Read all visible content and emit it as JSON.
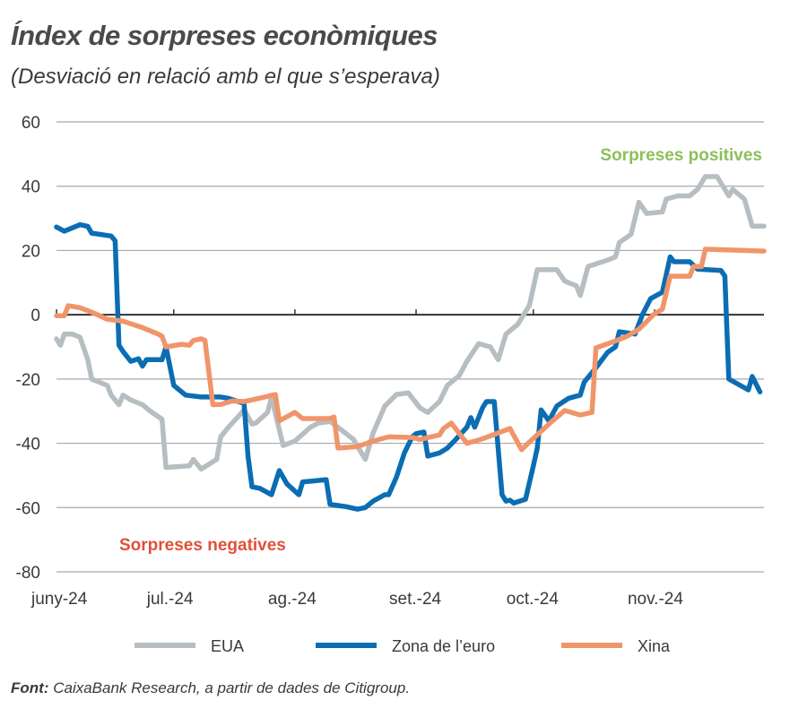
{
  "chart_data": {
    "type": "line",
    "title": "Índex de sorpreses econòmiques",
    "subtitle": "(Desviació en relació amb el que s’esperava)",
    "xlabel": "",
    "ylabel": "",
    "ylim": [
      -80,
      60
    ],
    "yticks": [
      60,
      40,
      20,
      0,
      -20,
      -40,
      -60,
      -80
    ],
    "xlim": [
      "2024-06-01",
      "2024-11-29"
    ],
    "xticks": [
      {
        "date": "2024-06-01",
        "label": "juny-24"
      },
      {
        "date": "2024-07-01",
        "label": "jul.-24"
      },
      {
        "date": "2024-08-01",
        "label": "ag.-24"
      },
      {
        "date": "2024-09-01",
        "label": "set.-24"
      },
      {
        "date": "2024-10-01",
        "label": "oct.-24"
      },
      {
        "date": "2024-11-01",
        "label": "nov.-24"
      }
    ],
    "grid": "horizontal",
    "legend_position": "bottom",
    "annotations": [
      {
        "text": "Sorpreses positives",
        "color": "#8dbf5a"
      },
      {
        "text": "Sorpreses negatives",
        "color": "#e0503a"
      }
    ],
    "series": [
      {
        "name": "EUA",
        "color": "#b6bec1",
        "points": [
          [
            "06-01",
            -7.5
          ],
          [
            "06-02",
            -9.5
          ],
          [
            "06-03",
            -6
          ],
          [
            "06-05",
            -6
          ],
          [
            "06-07",
            -7
          ],
          [
            "06-09",
            -14
          ],
          [
            "06-10",
            -20
          ],
          [
            "06-14",
            -22
          ],
          [
            "06-15",
            -25
          ],
          [
            "06-17",
            -28
          ],
          [
            "06-18",
            -25
          ],
          [
            "06-20",
            -26.5
          ],
          [
            "06-23",
            -28
          ],
          [
            "06-25",
            -30
          ],
          [
            "06-28",
            -32.5
          ],
          [
            "06-29",
            -47.5
          ],
          [
            "07-05",
            -47
          ],
          [
            "07-06",
            -45
          ],
          [
            "07-08",
            -48
          ],
          [
            "07-12",
            -45
          ],
          [
            "07-13",
            -38
          ],
          [
            "07-15",
            -35
          ],
          [
            "07-18",
            -31
          ],
          [
            "07-19",
            -29.5
          ],
          [
            "07-21",
            -34
          ],
          [
            "07-22",
            -33.7
          ],
          [
            "07-25",
            -30.4
          ],
          [
            "07-26",
            -25.7
          ],
          [
            "07-29",
            -40.7
          ],
          [
            "08-01",
            -39.3
          ],
          [
            "08-05",
            -35
          ],
          [
            "08-07",
            -33.7
          ],
          [
            "08-10",
            -33.2
          ],
          [
            "08-12",
            -35
          ],
          [
            "08-16",
            -38.8
          ],
          [
            "08-19",
            -45
          ],
          [
            "08-21",
            -36.8
          ],
          [
            "08-24",
            -28.4
          ],
          [
            "08-27",
            -24.8
          ],
          [
            "08-30",
            -24.3
          ],
          [
            "09-02",
            -29
          ],
          [
            "09-04",
            -30.4
          ],
          [
            "09-07",
            -27
          ],
          [
            "09-09",
            -22
          ],
          [
            "09-12",
            -19
          ],
          [
            "09-14",
            -14.5
          ],
          [
            "09-17",
            -9
          ],
          [
            "09-20",
            -10
          ],
          [
            "09-22",
            -14
          ],
          [
            "09-24",
            -6
          ],
          [
            "09-27",
            -3
          ],
          [
            "09-30",
            3
          ],
          [
            "10-02",
            14
          ],
          [
            "10-07",
            14
          ],
          [
            "10-09",
            10.5
          ],
          [
            "10-12",
            9
          ],
          [
            "10-13",
            6
          ],
          [
            "10-15",
            15
          ],
          [
            "10-20",
            17
          ],
          [
            "10-22",
            18
          ],
          [
            "10-23",
            22.5
          ],
          [
            "10-26",
            25
          ],
          [
            "10-28",
            35
          ],
          [
            "10-30",
            31.5
          ],
          [
            "11-03",
            32
          ],
          [
            "11-04",
            36
          ],
          [
            "11-07",
            37
          ],
          [
            "11-10",
            37
          ],
          [
            "11-12",
            39
          ],
          [
            "11-14",
            43
          ],
          [
            "11-17",
            43
          ],
          [
            "11-20",
            37
          ],
          [
            "11-21",
            39
          ],
          [
            "11-24",
            36
          ],
          [
            "11-26",
            27.6
          ],
          [
            "11-29",
            27.6
          ]
        ]
      },
      {
        "name": "Zona de l’euro",
        "color": "#0b6db3",
        "points": [
          [
            "06-01",
            27.3
          ],
          [
            "06-03",
            26
          ],
          [
            "06-05",
            27
          ],
          [
            "06-07",
            28
          ],
          [
            "06-09",
            27.5
          ],
          [
            "06-10",
            25.4
          ],
          [
            "06-15",
            24.5
          ],
          [
            "06-16",
            23
          ],
          [
            "06-17",
            -9.5
          ],
          [
            "06-18",
            -11.4
          ],
          [
            "06-20",
            -14.5
          ],
          [
            "06-22",
            -13.7
          ],
          [
            "06-23",
            -16
          ],
          [
            "06-24",
            -14
          ],
          [
            "06-28",
            -14
          ],
          [
            "06-29",
            -10
          ],
          [
            "07-01",
            -22
          ],
          [
            "07-04",
            -25
          ],
          [
            "07-08",
            -25.6
          ],
          [
            "07-13",
            -25.6
          ],
          [
            "07-15",
            -26
          ],
          [
            "07-19",
            -27.6
          ],
          [
            "07-20",
            -44
          ],
          [
            "07-21",
            -53.5
          ],
          [
            "07-23",
            -54
          ],
          [
            "07-26",
            -56
          ],
          [
            "07-28",
            -48.5
          ],
          [
            "07-30",
            -52.7
          ],
          [
            "08-02",
            -56
          ],
          [
            "08-03",
            -52
          ],
          [
            "08-05",
            -51.8
          ],
          [
            "08-09",
            -51.3
          ],
          [
            "08-10",
            -59
          ],
          [
            "08-14",
            -59.7
          ],
          [
            "08-17",
            -60.5
          ],
          [
            "08-19",
            -60
          ],
          [
            "08-21",
            -58
          ],
          [
            "08-24",
            -56
          ],
          [
            "08-25",
            -56
          ],
          [
            "08-27",
            -50.5
          ],
          [
            "08-29",
            -43
          ],
          [
            "08-31",
            -38
          ],
          [
            "09-01",
            -37
          ],
          [
            "09-03",
            -36.5
          ],
          [
            "09-04",
            -44
          ],
          [
            "09-07",
            -43
          ],
          [
            "09-09",
            -41.5
          ],
          [
            "09-11",
            -39
          ],
          [
            "09-14",
            -35
          ],
          [
            "09-15",
            -32
          ],
          [
            "09-16",
            -35
          ],
          [
            "09-18",
            -29
          ],
          [
            "09-19",
            -27
          ],
          [
            "09-21",
            -27
          ],
          [
            "09-23",
            -56
          ],
          [
            "09-24",
            -58
          ],
          [
            "09-25",
            -57.7
          ],
          [
            "09-26",
            -58.6
          ],
          [
            "09-29",
            -57.4
          ],
          [
            "10-01",
            -47
          ],
          [
            "10-02",
            -41.5
          ],
          [
            "10-03",
            -29.6
          ],
          [
            "10-05",
            -33
          ],
          [
            "10-07",
            -28.4
          ],
          [
            "10-10",
            -26
          ],
          [
            "10-13",
            -25
          ],
          [
            "10-14",
            -21
          ],
          [
            "10-17",
            -16.5
          ],
          [
            "10-20",
            -11.7
          ],
          [
            "10-22",
            -10
          ],
          [
            "10-23",
            -5.3
          ],
          [
            "10-27",
            -6
          ],
          [
            "10-29",
            0.3
          ],
          [
            "10-31",
            5
          ],
          [
            "11-03",
            7
          ],
          [
            "11-05",
            18
          ],
          [
            "11-06",
            16.5
          ],
          [
            "11-10",
            16.5
          ],
          [
            "11-12",
            14.2
          ],
          [
            "11-18",
            13.8
          ],
          [
            "11-19",
            12
          ],
          [
            "11-20",
            -20
          ],
          [
            "11-25",
            -23.4
          ],
          [
            "11-26",
            -19.2
          ],
          [
            "11-28",
            -24
          ]
        ]
      },
      {
        "name": "Xina",
        "color": "#f0956a",
        "points": [
          [
            "06-01",
            -0.3
          ],
          [
            "06-03",
            -0.3
          ],
          [
            "06-04",
            2.8
          ],
          [
            "06-07",
            2.2
          ],
          [
            "06-10",
            0.8
          ],
          [
            "06-12",
            -0.3
          ],
          [
            "06-14",
            -1.4
          ],
          [
            "06-18",
            -2
          ],
          [
            "06-23",
            -4
          ],
          [
            "06-27",
            -6
          ],
          [
            "06-28",
            -6.7
          ],
          [
            "06-29",
            -10
          ],
          [
            "07-03",
            -9.2
          ],
          [
            "07-05",
            -9.5
          ],
          [
            "07-06",
            -8
          ],
          [
            "07-08",
            -7.5
          ],
          [
            "07-09",
            -8
          ],
          [
            "07-11",
            -28
          ],
          [
            "07-13",
            -27.9
          ],
          [
            "07-16",
            -26.8
          ],
          [
            "07-19",
            -27
          ],
          [
            "07-21",
            -26.5
          ],
          [
            "07-25",
            -25.4
          ],
          [
            "07-27",
            -24.8
          ],
          [
            "07-28",
            -33
          ],
          [
            "08-01",
            -30.4
          ],
          [
            "08-03",
            -32.3
          ],
          [
            "08-10",
            -32.3
          ],
          [
            "08-11",
            -31.8
          ],
          [
            "08-12",
            -41.5
          ],
          [
            "08-17",
            -41
          ],
          [
            "08-21",
            -39.3
          ],
          [
            "08-25",
            -38
          ],
          [
            "08-31",
            -38.2
          ],
          [
            "09-02",
            -38.8
          ],
          [
            "09-07",
            -37.4
          ],
          [
            "09-08",
            -35.4
          ],
          [
            "09-10",
            -33.7
          ],
          [
            "09-14",
            -40
          ],
          [
            "09-18",
            -38.6
          ],
          [
            "09-25",
            -35.4
          ],
          [
            "09-28",
            -42
          ],
          [
            "09-30",
            -39.6
          ],
          [
            "10-05",
            -34
          ],
          [
            "10-09",
            -29.8
          ],
          [
            "10-13",
            -31.2
          ],
          [
            "10-16",
            -30.4
          ],
          [
            "10-17",
            -10.3
          ],
          [
            "10-21",
            -8.6
          ],
          [
            "10-25",
            -6.7
          ],
          [
            "10-28",
            -4.5
          ],
          [
            "11-01",
            0.3
          ],
          [
            "11-03",
            1.7
          ],
          [
            "11-05",
            12
          ],
          [
            "11-10",
            12
          ],
          [
            "11-11",
            15
          ],
          [
            "11-13",
            15
          ],
          [
            "11-14",
            20.4
          ],
          [
            "11-29",
            19.8
          ]
        ]
      }
    ],
    "year": 2024
  },
  "source": {
    "label": "Font:",
    "text": " CaixaBank Research, a partir de dades de Citigroup."
  }
}
